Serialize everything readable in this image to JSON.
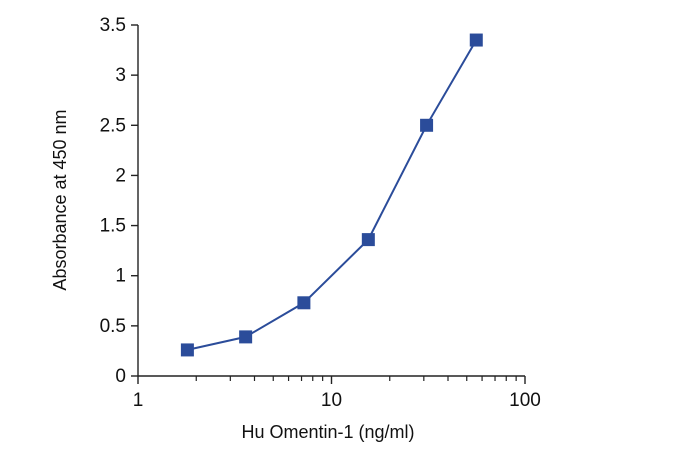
{
  "chart_data": {
    "type": "line",
    "title": "",
    "xlabel": "Hu Omentin-1 (ng/ml)",
    "ylabel": "Absorbance at 450 nm",
    "x_scale": "log",
    "xlim": [
      1,
      100
    ],
    "ylim": [
      0,
      3.5
    ],
    "x_ticks": [
      1,
      10,
      100
    ],
    "x_tick_labels": [
      "1",
      "10",
      "100"
    ],
    "y_ticks": [
      0,
      0.5,
      1,
      1.5,
      2,
      2.5,
      3,
      3.5
    ],
    "y_tick_labels": [
      "0",
      "0.5",
      "1",
      "1.5",
      "2",
      "2.5",
      "3",
      "3.5"
    ],
    "grid": false,
    "series": [
      {
        "marker": "square",
        "color": "#2b4c9a",
        "x": [
          1.8,
          3.6,
          7.2,
          15.5,
          31,
          56
        ],
        "y": [
          0.26,
          0.39,
          0.73,
          1.36,
          2.5,
          3.35
        ]
      }
    ]
  }
}
